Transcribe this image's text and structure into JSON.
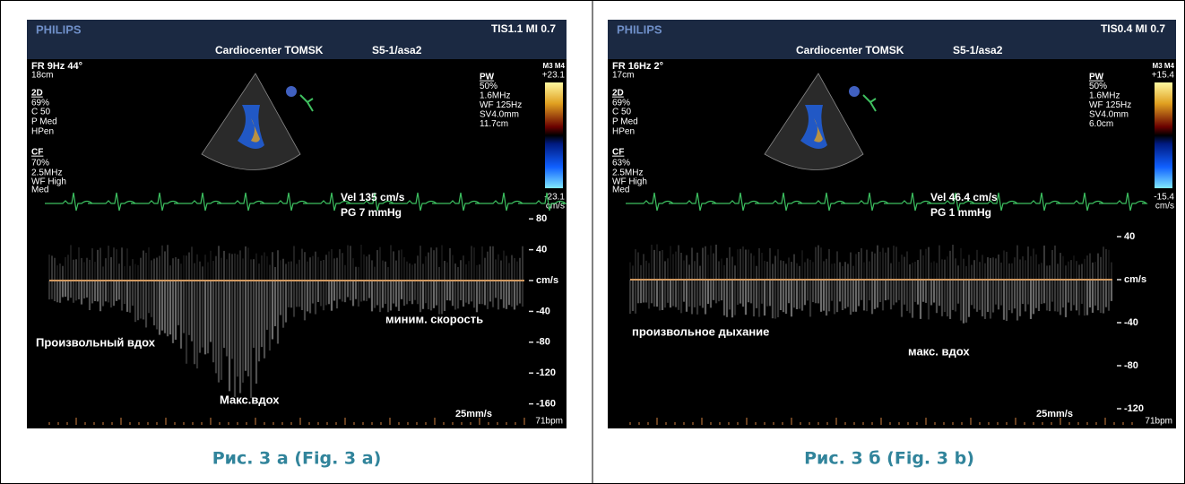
{
  "panels": [
    {
      "brand": "PHILIPS",
      "header_right": "TIS1.1   MI 0.7",
      "center": "Cardiocenter TOMSK",
      "probe": "S5-1/asa2",
      "left_params": [
        "FR 9Hz     44°",
        "18cm",
        "2D",
        "69%",
        "C 50",
        "P Med",
        "HPen",
        "CF",
        "70%",
        "2.5MHz",
        "WF High",
        "Med"
      ],
      "right_params": [
        "PW",
        "50%",
        "1.6MHz",
        "WF 125Hz",
        "SV4.0mm",
        "11.7cm"
      ],
      "colorbar": [
        "M3 M4",
        "+23.1",
        "-23.1",
        "cm/s"
      ],
      "measure": [
        "Vel    135 cm/s",
        "PG      7 mmHg"
      ],
      "velocity_ticks": [
        80,
        40,
        {
          "value": 0,
          "label": "cm/s"
        },
        -40,
        -80,
        -120,
        -160
      ],
      "annotations": [
        "Произвольный вдох",
        "Макс.вдох",
        "миним. скорость"
      ],
      "sweep": "25mm/s",
      "heart_rate": "71bpm",
      "caption": "Рис. 3 а (Fig. 3 a)"
    },
    {
      "brand": "PHILIPS",
      "header_right": "TIS0.4   MI 0.7",
      "center": "Cardiocenter TOMSK",
      "probe": "S5-1/asa2",
      "left_params": [
        "FR 16Hz     2°",
        "17cm",
        "2D",
        "69%",
        "C 50",
        "P Med",
        "HPen",
        "CF",
        "63%",
        "2.5MHz",
        "WF High",
        "Med"
      ],
      "right_params": [
        "PW",
        "50%",
        "1.6MHz",
        "WF 125Hz",
        "SV4.0mm",
        "6.0cm"
      ],
      "colorbar": [
        "M3 M4",
        "+15.4",
        "-15.4",
        "cm/s"
      ],
      "measure": [
        "Vel   46.4 cm/s",
        "PG     1 mmHg"
      ],
      "velocity_ticks": [
        40,
        {
          "value": 0,
          "label": "cm/s"
        },
        -40,
        -80,
        -120
      ],
      "annotations": [
        "произвольное дыхание",
        "макс. вдох"
      ],
      "sweep": "25mm/s",
      "heart_rate": "71bpm",
      "caption": "Рис. 3 б (Fig. 3 b)"
    }
  ]
}
